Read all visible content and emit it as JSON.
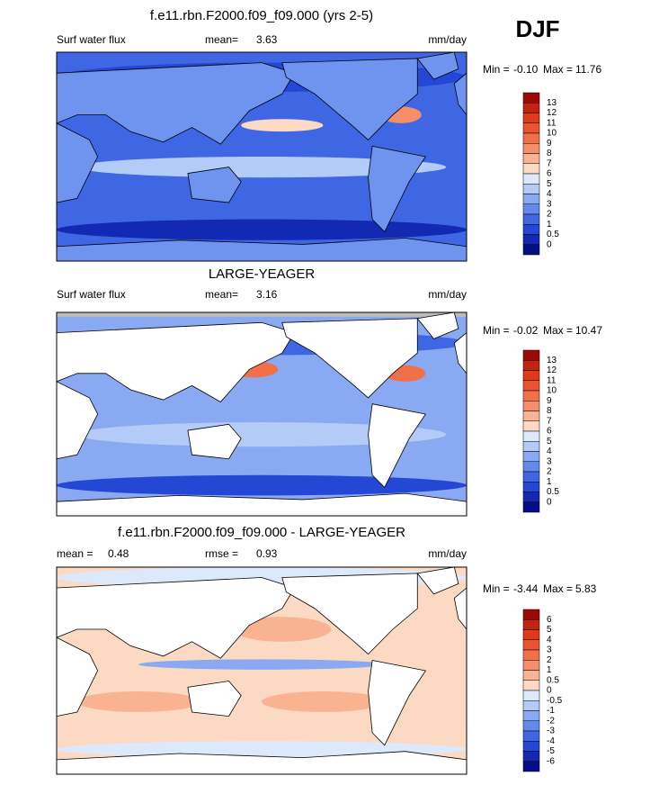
{
  "header": {
    "label": "DJF"
  },
  "panels": [
    {
      "title": "f.e11.rbn.F2000.f09_f09.000 (yrs 2-5)",
      "variable": "Surf water flux",
      "stats": [
        {
          "label": "mean=",
          "value": "3.63"
        }
      ],
      "units": "mm/day",
      "min_label": "Min =",
      "min": "-0.10",
      "max_label": "Max =",
      "max": "11.76",
      "colorbar": {
        "labels": [
          "13",
          "12",
          "11",
          "10",
          "9",
          "8",
          "7",
          "6",
          "5",
          "4",
          "3",
          "2",
          "1",
          "0.5",
          "0"
        ],
        "colors": [
          "#9b0a04",
          "#c4230f",
          "#dd3b1c",
          "#ea5530",
          "#f27049",
          "#f58f6b",
          "#f9b292",
          "#fcd9c2",
          "#dce9fb",
          "#b3cbf7",
          "#89aaf2",
          "#6289ec",
          "#3f67e4",
          "#2447d6",
          "#1229b3",
          "#050e82"
        ]
      }
    },
    {
      "title": "LARGE-YEAGER",
      "variable": "Surf water flux",
      "stats": [
        {
          "label": "mean=",
          "value": "3.16"
        }
      ],
      "units": "mm/day",
      "min_label": "Min =",
      "min": "-0.02",
      "max_label": "Max =",
      "max": "10.47",
      "colorbar": {
        "labels": [
          "13",
          "12",
          "11",
          "10",
          "9",
          "8",
          "7",
          "6",
          "5",
          "4",
          "3",
          "2",
          "1",
          "0.5",
          "0"
        ],
        "colors": [
          "#9b0a04",
          "#c4230f",
          "#dd3b1c",
          "#ea5530",
          "#f27049",
          "#f58f6b",
          "#f9b292",
          "#fcd9c2",
          "#dce9fb",
          "#b3cbf7",
          "#89aaf2",
          "#6289ec",
          "#3f67e4",
          "#2447d6",
          "#1229b3",
          "#050e82"
        ]
      }
    },
    {
      "title": "f.e11.rbn.F2000.f09_f09.000 - LARGE-YEAGER",
      "stats": [
        {
          "label": "mean =",
          "value": "0.48"
        },
        {
          "label": "rmse =",
          "value": "0.93"
        }
      ],
      "units": "mm/day",
      "min_label": "Min =",
      "min": "-3.44",
      "max_label": "Max =",
      "max": "5.83",
      "colorbar": {
        "labels": [
          "6",
          "5",
          "4",
          "3",
          "2",
          "1",
          "0.5",
          "0",
          "-0.5",
          "-1",
          "-2",
          "-3",
          "-4",
          "-5",
          "-6"
        ],
        "colors": [
          "#9b0a04",
          "#c4230f",
          "#dd3b1c",
          "#ea5530",
          "#f27049",
          "#f58f6b",
          "#f9b292",
          "#fcd9c2",
          "#dce9fb",
          "#b3cbf7",
          "#89aaf2",
          "#6289ec",
          "#3f67e4",
          "#2447d6",
          "#1229b3",
          "#050e82"
        ]
      }
    }
  ]
}
